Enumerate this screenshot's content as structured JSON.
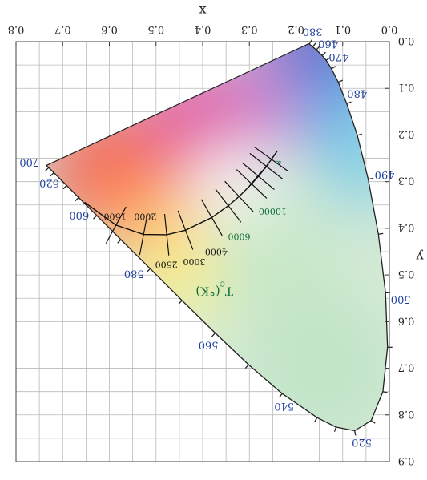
{
  "chart_data": {
    "type": "scatter",
    "title": "",
    "xlabel": "x",
    "ylabel": "y",
    "xlim": [
      0.0,
      0.8
    ],
    "ylim": [
      0.0,
      0.9
    ],
    "x_ticks": [
      "0.0",
      "0.1",
      "0.2",
      "0.3",
      "0.4",
      "0.5",
      "0.6",
      "0.7",
      "0.8"
    ],
    "y_ticks": [
      "0.0",
      "0.1",
      "0.2",
      "0.3",
      "0.4",
      "0.5",
      "0.6",
      "0.7",
      "0.8",
      "0.9"
    ],
    "grid": true,
    "orientation": "rotated 180 degrees",
    "spectral_locus": {
      "name": "spectral locus",
      "points": [
        {
          "nm": 380,
          "x": 0.1741,
          "y": 0.005
        },
        {
          "nm": 420,
          "x": 0.1714,
          "y": 0.0051
        },
        {
          "nm": 440,
          "x": 0.1644,
          "y": 0.0109
        },
        {
          "nm": 450,
          "x": 0.1566,
          "y": 0.0177
        },
        {
          "nm": 460,
          "x": 0.144,
          "y": 0.0297
        },
        {
          "nm": 465,
          "x": 0.1355,
          "y": 0.0399
        },
        {
          "nm": 470,
          "x": 0.1241,
          "y": 0.0578
        },
        {
          "nm": 475,
          "x": 0.1096,
          "y": 0.0868
        },
        {
          "nm": 480,
          "x": 0.0913,
          "y": 0.1327
        },
        {
          "nm": 485,
          "x": 0.0687,
          "y": 0.2007
        },
        {
          "nm": 490,
          "x": 0.0454,
          "y": 0.295
        },
        {
          "nm": 495,
          "x": 0.0235,
          "y": 0.4127
        },
        {
          "nm": 500,
          "x": 0.0082,
          "y": 0.5384
        },
        {
          "nm": 505,
          "x": 0.0039,
          "y": 0.6548
        },
        {
          "nm": 510,
          "x": 0.0139,
          "y": 0.7502
        },
        {
          "nm": 515,
          "x": 0.0389,
          "y": 0.812
        },
        {
          "nm": 520,
          "x": 0.0743,
          "y": 0.8338
        },
        {
          "nm": 525,
          "x": 0.1142,
          "y": 0.8262
        },
        {
          "nm": 530,
          "x": 0.1547,
          "y": 0.8059
        },
        {
          "nm": 540,
          "x": 0.2296,
          "y": 0.7543
        },
        {
          "nm": 550,
          "x": 0.3016,
          "y": 0.6923
        },
        {
          "nm": 560,
          "x": 0.3731,
          "y": 0.6245
        },
        {
          "nm": 570,
          "x": 0.4441,
          "y": 0.5547
        },
        {
          "nm": 580,
          "x": 0.5125,
          "y": 0.4866
        },
        {
          "nm": 590,
          "x": 0.5752,
          "y": 0.4242
        },
        {
          "nm": 600,
          "x": 0.627,
          "y": 0.3725
        },
        {
          "nm": 610,
          "x": 0.6658,
          "y": 0.334
        },
        {
          "nm": 620,
          "x": 0.6915,
          "y": 0.3083
        },
        {
          "nm": 640,
          "x": 0.719,
          "y": 0.2809
        },
        {
          "nm": 660,
          "x": 0.73,
          "y": 0.27
        },
        {
          "nm": 700,
          "x": 0.7347,
          "y": 0.2653
        }
      ]
    },
    "wavelength_labels": [
      {
        "text": "380",
        "x": 0.1741,
        "y": 0.005
      },
      {
        "text": "460",
        "x": 0.144,
        "y": 0.0297
      },
      {
        "text": "470",
        "x": 0.1241,
        "y": 0.0578
      },
      {
        "text": "480",
        "x": 0.0913,
        "y": 0.1327
      },
      {
        "text": "490",
        "x": 0.0454,
        "y": 0.295
      },
      {
        "text": "500",
        "x": 0.0082,
        "y": 0.5384
      },
      {
        "text": "520",
        "x": 0.0743,
        "y": 0.8338
      },
      {
        "text": "540",
        "x": 0.2296,
        "y": 0.7543
      },
      {
        "text": "560",
        "x": 0.3731,
        "y": 0.6245
      },
      {
        "text": "580",
        "x": 0.5125,
        "y": 0.4866
      },
      {
        "text": "600",
        "x": 0.627,
        "y": 0.3725
      },
      {
        "text": "620",
        "x": 0.6915,
        "y": 0.3083
      },
      {
        "text": "700",
        "x": 0.7347,
        "y": 0.2653
      }
    ],
    "planckian_locus": {
      "name": "planckian locus",
      "points": [
        {
          "T": 1000,
          "x": 0.6528,
          "y": 0.3444
        },
        {
          "T": 1500,
          "x": 0.5857,
          "y": 0.3931
        },
        {
          "T": 2000,
          "x": 0.5267,
          "y": 0.4133
        },
        {
          "T": 2500,
          "x": 0.477,
          "y": 0.4137
        },
        {
          "T": 3000,
          "x": 0.4369,
          "y": 0.4041
        },
        {
          "T": 4000,
          "x": 0.3805,
          "y": 0.3768
        },
        {
          "T": 5000,
          "x": 0.3451,
          "y": 0.3516
        },
        {
          "T": 6000,
          "x": 0.3221,
          "y": 0.3318
        },
        {
          "T": 8000,
          "x": 0.2951,
          "y": 0.3048
        },
        {
          "T": 10000,
          "x": 0.2807,
          "y": 0.2884
        },
        {
          "T": 15000,
          "x": 0.2637,
          "y": 0.2671
        },
        {
          "T": 25000,
          "x": 0.2525,
          "y": 0.2522
        },
        {
          "T": 1000000,
          "x": 0.24,
          "y": 0.234
        }
      ]
    },
    "isotherm_labels": [
      {
        "text": "1500",
        "x": 0.588,
        "y": 0.375,
        "color": "black"
      },
      {
        "text": "2000",
        "x": 0.523,
        "y": 0.375,
        "color": "black"
      },
      {
        "text": "2500",
        "x": 0.478,
        "y": 0.478,
        "color": "black"
      },
      {
        "text": "3000",
        "x": 0.418,
        "y": 0.472,
        "color": "black"
      },
      {
        "text": "4000",
        "x": 0.371,
        "y": 0.451,
        "color": "black"
      },
      {
        "text": "6000",
        "x": 0.322,
        "y": 0.418,
        "color": "green"
      },
      {
        "text": "10000",
        "x": 0.25,
        "y": 0.364,
        "color": "green"
      },
      {
        "text": "∞",
        "x": 0.238,
        "y": 0.26,
        "color": "green"
      }
    ],
    "tc_label": {
      "text": "T",
      "sub": "c",
      "suffix": "(°K)",
      "x": 0.375,
      "y": 0.535
    }
  }
}
